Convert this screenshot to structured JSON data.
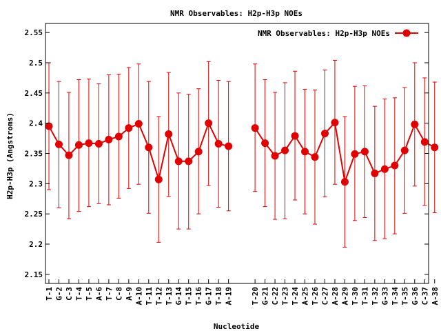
{
  "chart_data": {
    "type": "line",
    "title": "NMR Observables: H2p-H3p NOEs",
    "xlabel": "Nucleotide",
    "ylabel": "H2p-H3p (Angstroms)",
    "ylim": [
      2.135,
      2.565
    ],
    "yticks": [
      "2.15",
      "2.2",
      "2.25",
      "2.3",
      "2.35",
      "2.4",
      "2.45",
      "2.5",
      "2.55"
    ],
    "legend": {
      "label": "NMR Observables: H2p-H3p NOEs",
      "placement": "top-right"
    },
    "color": "#e00000",
    "categories": [
      "T-1",
      "G-2",
      "C-3",
      "T-4",
      "T-5",
      "A-6",
      "T-7",
      "C-8",
      "A-9",
      "A-10",
      "T-11",
      "T-12",
      "T-13",
      "G-14",
      "T-15",
      "T-16",
      "G-17",
      "T-18",
      "A-19",
      "T-20",
      "G-21",
      "C-22",
      "T-23",
      "T-24",
      "A-25",
      "T-26",
      "C-27",
      "A-28",
      "A-29",
      "T-30",
      "T-31",
      "T-32",
      "G-33",
      "T-34",
      "T-35",
      "G-36",
      "C-37",
      "A-38"
    ],
    "segments": [
      [
        {
          "x": "T-1",
          "y": 2.395,
          "low": 2.29,
          "high": 2.5
        },
        {
          "x": "G-2",
          "y": 2.365,
          "low": 2.26,
          "high": 2.469
        },
        {
          "x": "C-3",
          "y": 2.347,
          "low": 2.242,
          "high": 2.451
        },
        {
          "x": "T-4",
          "y": 2.364,
          "low": 2.254,
          "high": 2.472
        },
        {
          "x": "T-5",
          "y": 2.367,
          "low": 2.262,
          "high": 2.473
        },
        {
          "x": "A-6",
          "y": 2.366,
          "low": 2.267,
          "high": 2.465
        },
        {
          "x": "T-7",
          "y": 2.373,
          "low": 2.265,
          "high": 2.48
        },
        {
          "x": "C-8",
          "y": 2.378,
          "low": 2.276,
          "high": 2.481
        },
        {
          "x": "A-9",
          "y": 2.392,
          "low": 2.292,
          "high": 2.492
        },
        {
          "x": "A-10",
          "y": 2.399,
          "low": 2.299,
          "high": 2.498
        },
        {
          "x": "T-11",
          "y": 2.36,
          "low": 2.251,
          "high": 2.469
        },
        {
          "x": "T-12",
          "y": 2.307,
          "low": 2.203,
          "high": 2.411
        },
        {
          "x": "T-13",
          "y": 2.382,
          "low": 2.279,
          "high": 2.484
        },
        {
          "x": "G-14",
          "y": 2.337,
          "low": 2.225,
          "high": 2.45
        },
        {
          "x": "T-15",
          "y": 2.337,
          "low": 2.225,
          "high": 2.448
        },
        {
          "x": "T-16",
          "y": 2.353,
          "low": 2.25,
          "high": 2.457
        },
        {
          "x": "G-17",
          "y": 2.4,
          "low": 2.297,
          "high": 2.502
        },
        {
          "x": "T-18",
          "y": 2.366,
          "low": 2.261,
          "high": 2.471
        },
        {
          "x": "A-19",
          "y": 2.362,
          "low": 2.255,
          "high": 2.469
        }
      ],
      [
        {
          "x": "T-20",
          "y": 2.392,
          "low": 2.287,
          "high": 2.498
        },
        {
          "x": "G-21",
          "y": 2.367,
          "low": 2.262,
          "high": 2.472
        },
        {
          "x": "C-22",
          "y": 2.346,
          "low": 2.241,
          "high": 2.451
        },
        {
          "x": "T-23",
          "y": 2.355,
          "low": 2.242,
          "high": 2.467
        },
        {
          "x": "T-24",
          "y": 2.379,
          "low": 2.273,
          "high": 2.486
        },
        {
          "x": "A-25",
          "y": 2.353,
          "low": 2.25,
          "high": 2.456
        },
        {
          "x": "T-26",
          "y": 2.344,
          "low": 2.233,
          "high": 2.455
        },
        {
          "x": "C-27",
          "y": 2.383,
          "low": 2.278,
          "high": 2.488
        },
        {
          "x": "A-28",
          "y": 2.401,
          "low": 2.299,
          "high": 2.504
        },
        {
          "x": "A-29",
          "y": 2.303,
          "low": 2.195,
          "high": 2.411
        },
        {
          "x": "T-30",
          "y": 2.349,
          "low": 2.239,
          "high": 2.461
        },
        {
          "x": "T-31",
          "y": 2.353,
          "low": 2.244,
          "high": 2.462
        },
        {
          "x": "T-32",
          "y": 2.317,
          "low": 2.206,
          "high": 2.428
        },
        {
          "x": "G-33",
          "y": 2.324,
          "low": 2.209,
          "high": 2.44
        },
        {
          "x": "T-34",
          "y": 2.33,
          "low": 2.217,
          "high": 2.442
        },
        {
          "x": "T-35",
          "y": 2.355,
          "low": 2.251,
          "high": 2.459
        },
        {
          "x": "G-36",
          "y": 2.398,
          "low": 2.296,
          "high": 2.5
        },
        {
          "x": "C-37",
          "y": 2.369,
          "low": 2.264,
          "high": 2.475
        },
        {
          "x": "A-38",
          "y": 2.36,
          "low": 2.252,
          "high": 2.468
        }
      ]
    ]
  }
}
